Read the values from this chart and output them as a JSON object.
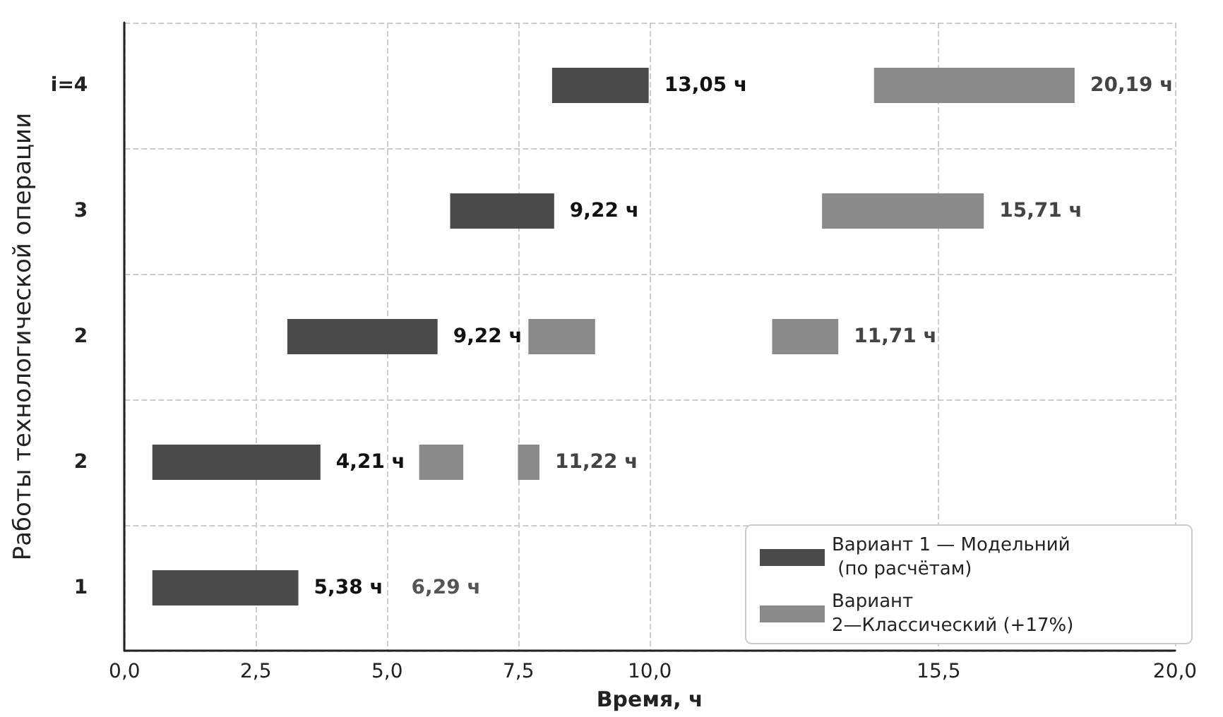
{
  "chart_data": {
    "type": "bar",
    "orientation": "horizontal",
    "xlabel": "Время, ч",
    "ylabel": "Работы технологической операции",
    "categories": [
      "i=4",
      "3",
      "2",
      "2",
      "1"
    ],
    "xlim": [
      0,
      20
    ],
    "xticks": [
      {
        "value": 0,
        "label": "0,0"
      },
      {
        "value": 2.5,
        "label": "2,5"
      },
      {
        "value": 5,
        "label": "5,0"
      },
      {
        "value": 7.5,
        "label": "7,5"
      },
      {
        "value": 10,
        "label": "10,0"
      },
      {
        "value": 15.5,
        "label": "15,5"
      },
      {
        "value": 20,
        "label": "20,0"
      }
    ],
    "series": [
      {
        "name": "Вариант 1 — Модельний (по расчётам)",
        "color": "#4a4a4a",
        "base": [
          8.14,
          6.2,
          3.1,
          0.53,
          0.53
        ],
        "values": [
          1.84,
          1.98,
          2.86,
          3.2,
          2.78
        ]
      },
      {
        "name": "Вариант 2—Классический (+17%)",
        "color": "#8a8a8a",
        "base": [
          14.27,
          13.28,
          7.69,
          5.61,
          null
        ],
        "values": [
          3.82,
          3.08,
          1.27,
          0.84,
          null
        ]
      },
      {
        "color": "#8a8a8a",
        "base": [
          null,
          null,
          12.33,
          7.49,
          null
        ],
        "values": [
          null,
          null,
          1.26,
          0.41,
          null
        ]
      }
    ],
    "annotations": [
      {
        "text": "13,05 ч",
        "x": 9.98,
        "y": "i=4"
      },
      {
        "text": "20,19 ч",
        "x": 18.09,
        "y": "i=4"
      },
      {
        "text": "9,22 ч",
        "x": 8.18,
        "y": "3"
      },
      {
        "text": "15,71 ч",
        "x": 16.36,
        "y": "3"
      },
      {
        "text": "9,22 ч",
        "x": 5.96,
        "y": "2"
      },
      {
        "text": "11,71 ч",
        "x": 13.59,
        "y": "2"
      },
      "4,21 ч",
      "11,22 ч",
      {
        "text": "5,38 ч",
        "x": 3.31,
        "y": "1"
      },
      "6,29 ч"
    ],
    "grid": true,
    "legend": "bottom right"
  }
}
